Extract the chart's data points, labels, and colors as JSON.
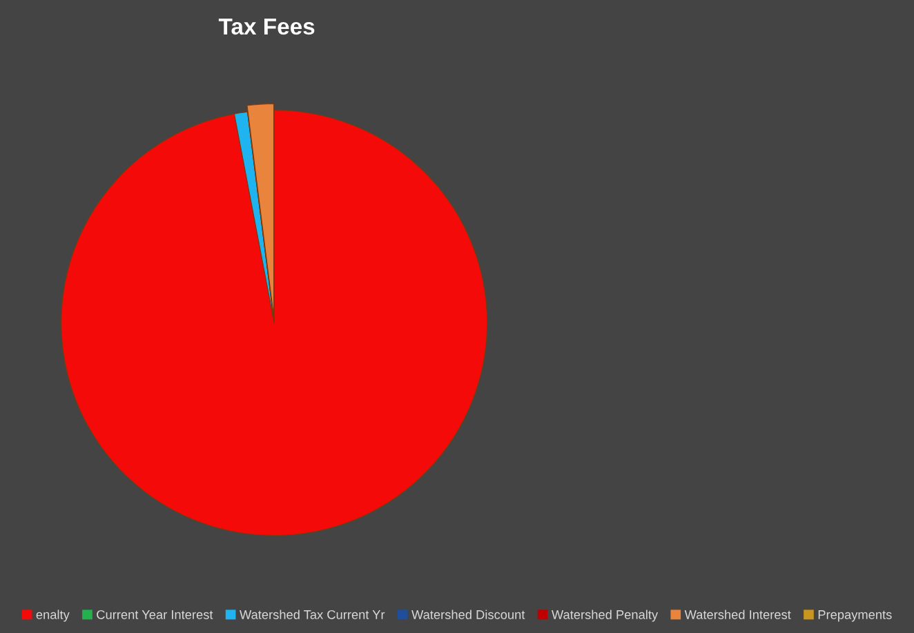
{
  "chart_data": {
    "type": "pie",
    "title": "Tax Fees",
    "categories": [
      "enalty",
      "Current Year Interest",
      "Watershed Tax Current Yr",
      "Watershed Discount",
      "Watershed Penalty",
      "Watershed Interest",
      "Prepayments"
    ],
    "values": [
      97,
      0,
      1,
      0,
      0,
      2,
      0
    ],
    "colors": [
      "#f50a0a",
      "#22b14c",
      "#1fb4f0",
      "#1f4e9c",
      "#c00000",
      "#e8843c",
      "#c9961e"
    ],
    "legend": "bottom"
  }
}
